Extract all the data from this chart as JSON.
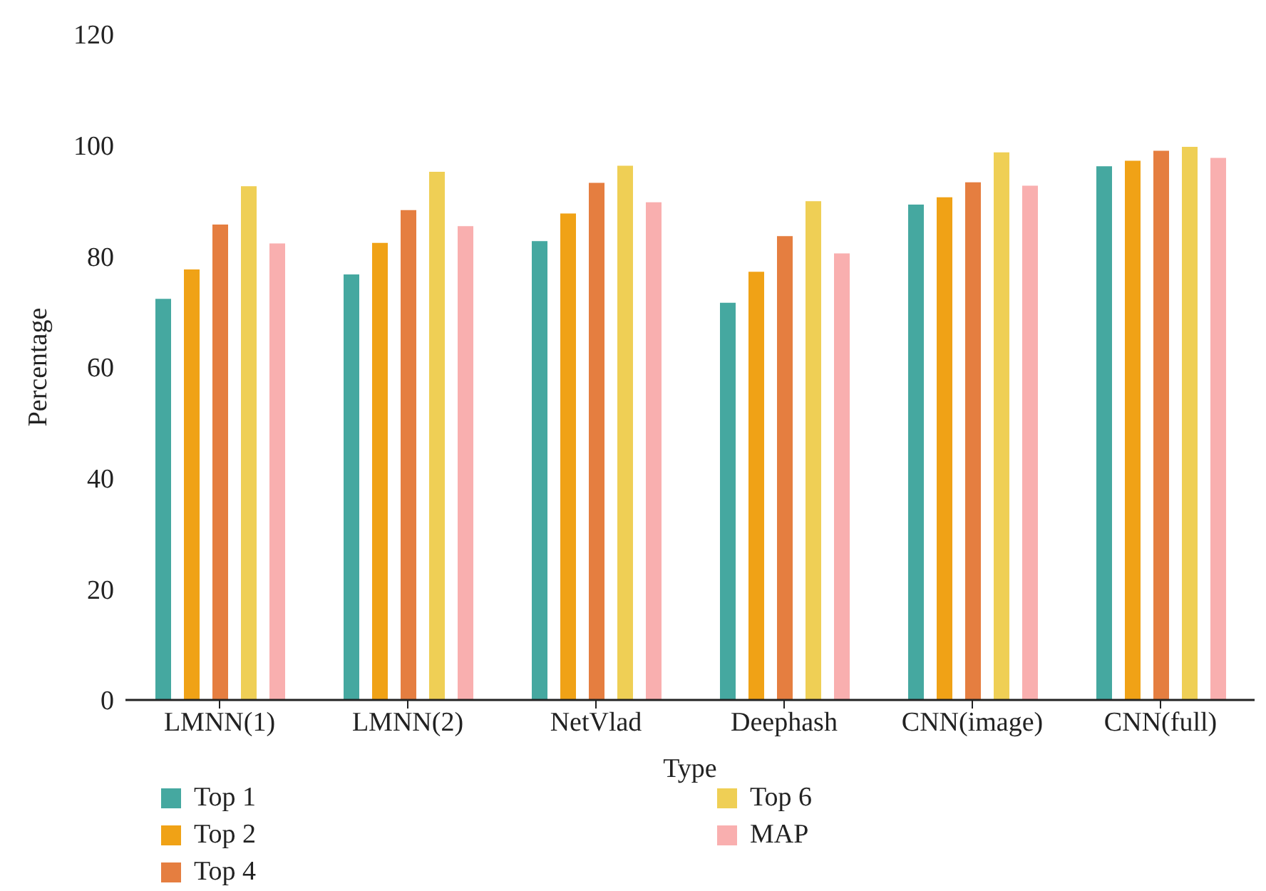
{
  "chart_data": {
    "type": "bar",
    "xlabel": "Type",
    "ylabel": "Percentage",
    "categories": [
      "LMNN(1)",
      "LMNN(2)",
      "NetVlad",
      "Deephash",
      "CNN(image)",
      "CNN(full)"
    ],
    "series": [
      {
        "name": "Top 1",
        "color": "#45a8a0",
        "values": [
          72.3,
          76.7,
          82.7,
          71.6,
          89.3,
          96.2
        ]
      },
      {
        "name": "Top 2",
        "color": "#f0a216",
        "values": [
          77.6,
          82.4,
          87.7,
          77.2,
          90.6,
          97.2
        ]
      },
      {
        "name": "Top 4",
        "color": "#e57e40",
        "values": [
          85.7,
          88.3,
          93.2,
          83.6,
          93.3,
          99.0
        ]
      },
      {
        "name": "Top 6",
        "color": "#efcf55",
        "values": [
          92.6,
          95.2,
          96.3,
          89.9,
          98.7,
          99.7
        ]
      },
      {
        "name": "MAP",
        "color": "#f9afaf",
        "values": [
          82.3,
          85.4,
          89.7,
          80.5,
          92.7,
          97.7
        ]
      }
    ],
    "ylim": [
      0,
      120
    ],
    "yticks": [
      0,
      20,
      40,
      60,
      80,
      100,
      120
    ],
    "grid": false,
    "legend": "bottom"
  }
}
